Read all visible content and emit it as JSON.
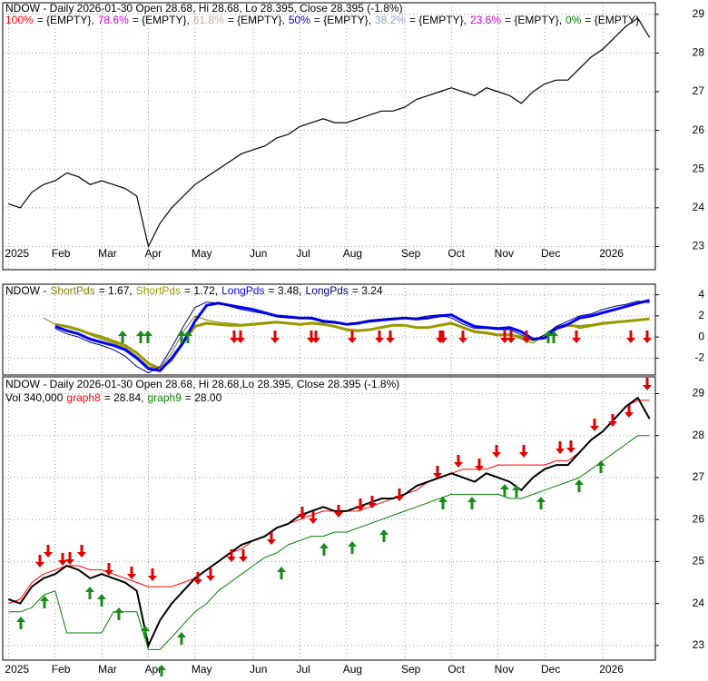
{
  "chart_data": [
    {
      "type": "line",
      "title": "NDOW - Daily 2026-01-30 Open 28.68, Hi 28.68, Lo 28.395, Close 28.395 (-1.8%)",
      "legend": [
        {
          "name": "100%",
          "text": "= {EMPTY},",
          "color": "#ff0000"
        },
        {
          "name": "78.6%",
          "text": "= {EMPTY},",
          "color": "#cc00cc"
        },
        {
          "name": "61.8%",
          "text": "= {EMPTY},",
          "color": "#b8b0a0"
        },
        {
          "name": "50%",
          "text": "= {EMPTY},",
          "color": "#0000cc"
        },
        {
          "name": "38.2%",
          "text": "= {EMPTY},",
          "color": "#8aa0c8"
        },
        {
          "name": "23.6%",
          "text": "= {EMPTY},",
          "color": "#cc00cc"
        },
        {
          "name": "0%",
          "text": "= {EMPTY}",
          "color": "#008000"
        }
      ],
      "categories": [
        "2025",
        null,
        null,
        null,
        "Feb",
        null,
        null,
        null,
        "Mar",
        null,
        null,
        null,
        "Apr",
        null,
        null,
        null,
        "May",
        null,
        null,
        null,
        null,
        "Jun",
        null,
        null,
        null,
        "Jul",
        null,
        null,
        null,
        "Aug",
        null,
        null,
        null,
        null,
        "Sep",
        null,
        null,
        null,
        "Oct",
        null,
        null,
        null,
        "Nov",
        null,
        null,
        null,
        "Dec",
        null,
        null,
        null,
        null,
        "2026",
        null,
        null,
        null,
        null
      ],
      "values": [
        24.1,
        24.0,
        24.4,
        24.6,
        24.7,
        24.9,
        24.8,
        24.6,
        24.7,
        24.6,
        24.5,
        24.3,
        23.0,
        23.6,
        24.0,
        24.3,
        24.6,
        24.8,
        25.0,
        25.2,
        25.4,
        25.5,
        25.6,
        25.8,
        25.9,
        26.1,
        26.2,
        26.3,
        26.2,
        26.2,
        26.3,
        26.4,
        26.5,
        26.5,
        26.6,
        26.8,
        26.9,
        27.0,
        27.1,
        27.0,
        26.9,
        27.1,
        27.0,
        26.9,
        26.7,
        27.0,
        27.2,
        27.3,
        27.3,
        27.6,
        27.9,
        28.1,
        28.4,
        28.7,
        28.9,
        28.4
      ],
      "color": "#000000",
      "ylim": [
        22.4,
        29.3
      ],
      "yticks": [
        23,
        24,
        25,
        26,
        27,
        28,
        29
      ],
      "grid": true
    },
    {
      "type": "line",
      "title": "NDOW -",
      "categories": [
        "2025",
        null,
        null,
        null,
        "Feb",
        null,
        null,
        null,
        "Mar",
        null,
        null,
        null,
        "Apr",
        null,
        null,
        null,
        "May",
        null,
        null,
        null,
        null,
        "Jun",
        null,
        null,
        null,
        "Jul",
        null,
        null,
        null,
        "Aug",
        null,
        null,
        null,
        null,
        "Sep",
        null,
        null,
        null,
        "Oct",
        null,
        null,
        null,
        "Nov",
        null,
        null,
        null,
        "Dec",
        null,
        null,
        null,
        null,
        "2026",
        null,
        null,
        null,
        null
      ],
      "series": [
        {
          "name": "ShortPds",
          "label": "= 1.67,",
          "color": "#808000",
          "line_width": 1,
          "values": [
            null,
            null,
            null,
            1.8,
            1.2,
            0.9,
            0.6,
            0.2,
            -0.2,
            -0.6,
            -1.0,
            -1.8,
            -2.8,
            -3.0,
            -1.5,
            0.5,
            2.0,
            1.6,
            1.4,
            1.3,
            1.2,
            1.3,
            1.4,
            1.5,
            1.3,
            1.2,
            1.4,
            1.3,
            1.0,
            0.6,
            0.5,
            0.7,
            1.0,
            1.2,
            1.1,
            0.8,
            0.9,
            1.2,
            1.4,
            0.8,
            0.4,
            0.3,
            0.1,
            0.2,
            -0.2,
            -0.6,
            0.2,
            1.0,
            1.2,
            0.8,
            1.0,
            1.2,
            1.3,
            1.5,
            1.6,
            1.67
          ]
        },
        {
          "name": "ShortPds",
          "label": "= 1.72,",
          "color": "#999900",
          "line_width": 3,
          "values": [
            null,
            null,
            null,
            null,
            1.2,
            1.0,
            0.7,
            0.3,
            0.0,
            -0.4,
            -0.8,
            -1.5,
            -2.5,
            -3.0,
            -2.2,
            -0.5,
            1.0,
            1.3,
            1.2,
            1.1,
            1.1,
            1.2,
            1.3,
            1.4,
            1.3,
            1.2,
            1.3,
            1.2,
            1.0,
            0.7,
            0.6,
            0.7,
            0.9,
            1.1,
            1.1,
            0.9,
            0.9,
            1.1,
            1.3,
            0.9,
            0.5,
            0.4,
            0.2,
            0.2,
            0.0,
            -0.3,
            0.0,
            0.8,
            1.1,
            1.0,
            1.1,
            1.3,
            1.4,
            1.5,
            1.6,
            1.72
          ]
        },
        {
          "name": "LongPds",
          "label": "= 3.48,",
          "color": "#0000ff",
          "line_width": 3,
          "values": [
            null,
            null,
            null,
            null,
            1.0,
            0.6,
            0.3,
            -0.2,
            -0.5,
            -0.8,
            -1.2,
            -2.0,
            -3.0,
            -3.2,
            -2.0,
            -0.5,
            1.5,
            3.0,
            3.2,
            3.0,
            2.8,
            2.6,
            2.3,
            2.0,
            1.9,
            1.8,
            1.8,
            1.5,
            1.4,
            1.2,
            1.3,
            1.5,
            1.6,
            1.7,
            1.8,
            1.7,
            1.8,
            2.0,
            2.1,
            1.5,
            1.0,
            0.9,
            0.8,
            0.9,
            0.5,
            -0.2,
            -0.1,
            0.8,
            1.2,
            1.8,
            2.0,
            2.3,
            2.6,
            2.9,
            3.2,
            3.48
          ]
        },
        {
          "name": "LongPds",
          "label": "= 3.24",
          "color": "#000080",
          "line_width": 1,
          "values": [
            null,
            null,
            null,
            null,
            0.8,
            0.3,
            0.0,
            -0.5,
            -0.8,
            -1.2,
            -1.8,
            -2.8,
            -3.4,
            -2.8,
            -1.0,
            1.0,
            2.8,
            3.3,
            3.2,
            2.9,
            2.6,
            2.4,
            2.2,
            1.9,
            1.8,
            1.8,
            1.7,
            1.4,
            1.3,
            1.2,
            1.4,
            1.6,
            1.7,
            1.8,
            1.8,
            1.8,
            2.0,
            2.1,
            1.8,
            1.2,
            0.8,
            0.8,
            0.7,
            0.7,
            0.2,
            -0.3,
            0.2,
            1.0,
            1.5,
            2.0,
            2.2,
            2.6,
            2.9,
            3.1,
            3.4,
            3.24
          ]
        }
      ],
      "ylim": [
        -3.6,
        5.0
      ],
      "yticks": [
        -2,
        0,
        2,
        4
      ],
      "grid": true
    },
    {
      "type": "line",
      "title": "NDOW - Daily 2026-01-30 Open 28.68, Hi 28.68,Lo 28.395, Close 28.395 (-1.8%)",
      "subtitle": "Vol 340,000",
      "categories": [
        "2025",
        null,
        null,
        null,
        "Feb",
        null,
        null,
        null,
        "Mar",
        null,
        null,
        null,
        "Apr",
        null,
        null,
        null,
        "May",
        null,
        null,
        null,
        null,
        "Jun",
        null,
        null,
        null,
        "Jul",
        null,
        null,
        null,
        "Aug",
        null,
        null,
        null,
        null,
        "Sep",
        null,
        null,
        null,
        "Oct",
        null,
        null,
        null,
        "Nov",
        null,
        null,
        null,
        "Dec",
        null,
        null,
        null,
        null,
        "2026",
        null,
        null,
        null,
        null
      ],
      "values": [
        24.1,
        24.0,
        24.4,
        24.6,
        24.7,
        24.9,
        24.8,
        24.6,
        24.7,
        24.6,
        24.5,
        24.3,
        23.0,
        23.6,
        24.0,
        24.3,
        24.6,
        24.8,
        25.0,
        25.2,
        25.4,
        25.5,
        25.6,
        25.8,
        25.9,
        26.1,
        26.2,
        26.3,
        26.2,
        26.2,
        26.3,
        26.4,
        26.5,
        26.5,
        26.6,
        26.8,
        26.9,
        27.0,
        27.1,
        27.0,
        26.9,
        27.1,
        27.0,
        26.9,
        26.7,
        27.0,
        27.2,
        27.3,
        27.3,
        27.6,
        27.9,
        28.1,
        28.4,
        28.7,
        28.9,
        28.4
      ],
      "color": "#000000",
      "series": [
        {
          "name": "graph8",
          "label": "= 28.84,",
          "color": "#ff0000",
          "line_width": 1,
          "values": [
            24.0,
            24.1,
            24.5,
            24.7,
            24.8,
            24.9,
            24.9,
            24.8,
            24.8,
            24.7,
            24.6,
            24.5,
            24.4,
            24.4,
            24.4,
            24.5,
            24.6,
            24.8,
            25.0,
            25.2,
            25.3,
            25.5,
            25.6,
            25.8,
            25.9,
            26.0,
            26.1,
            26.2,
            26.2,
            26.2,
            26.2,
            26.3,
            26.4,
            26.5,
            26.6,
            26.7,
            26.9,
            27.0,
            27.1,
            27.2,
            27.2,
            27.2,
            27.3,
            27.3,
            27.3,
            27.3,
            27.3,
            27.4,
            27.4,
            27.6,
            27.9,
            28.1,
            28.4,
            28.7,
            28.84,
            28.84
          ]
        },
        {
          "name": "graph9",
          "label": "= 28.00",
          "color": "#008000",
          "line_width": 1,
          "values": [
            23.8,
            23.8,
            23.9,
            24.2,
            24.3,
            23.3,
            23.3,
            23.3,
            23.3,
            23.8,
            23.8,
            23.8,
            22.9,
            22.9,
            23.2,
            23.5,
            23.8,
            24.0,
            24.3,
            24.5,
            24.7,
            24.9,
            25.1,
            25.2,
            25.4,
            25.5,
            25.6,
            25.6,
            25.7,
            25.7,
            25.8,
            25.9,
            26.0,
            26.1,
            26.2,
            26.3,
            26.4,
            26.5,
            26.6,
            26.6,
            26.6,
            26.6,
            26.6,
            26.5,
            26.5,
            26.6,
            26.7,
            26.8,
            26.9,
            27.0,
            27.2,
            27.4,
            27.6,
            27.8,
            28.0,
            28.0
          ]
        }
      ],
      "ylim": [
        22.65,
        29.4
      ],
      "yticks": [
        23,
        24,
        25,
        26,
        27,
        28,
        29
      ],
      "grid": true
    }
  ]
}
